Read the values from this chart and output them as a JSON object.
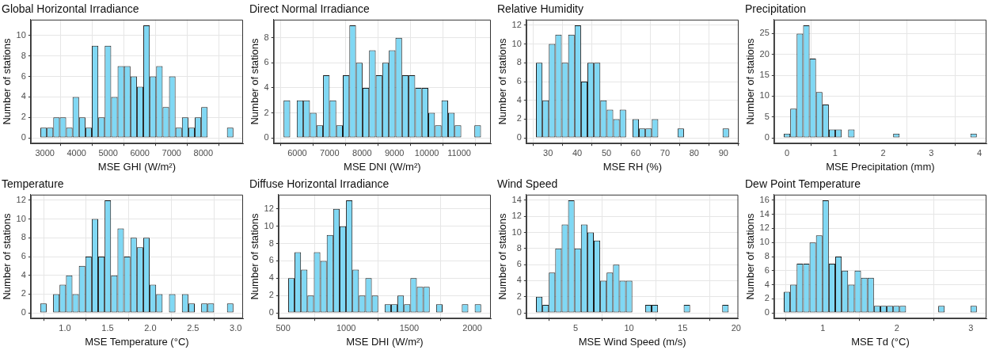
{
  "chart_data": [
    {
      "type": "histogram",
      "title": "Global Horizontal Irradiance",
      "xlabel": "MSE GHI (W/m²)",
      "ylabel": "Number of stations",
      "color": "#80d8f4",
      "grid": true,
      "bins": [
        2860,
        3063,
        3266,
        3469,
        3672,
        3875,
        4078,
        4281,
        4484,
        4687,
        4890,
        5093,
        5296,
        5499,
        5702,
        5905,
        6108,
        6311,
        6514,
        6717,
        6920,
        7123,
        7326,
        7529,
        7732,
        7935,
        8138,
        8341,
        8544,
        8747,
        8950
      ],
      "values": [
        1,
        1,
        2,
        2,
        1,
        4,
        2,
        1,
        9,
        2,
        9,
        4,
        7,
        7,
        6,
        5,
        11,
        6,
        7,
        3,
        6,
        1,
        2,
        1,
        2,
        3,
        0,
        0,
        0,
        1
      ],
      "xlim": [
        2555,
        9255
      ],
      "xticks": [
        3000,
        4000,
        5000,
        6000,
        7000,
        8000
      ],
      "ylim": [
        -0.55,
        11.55
      ],
      "yticks": [
        0,
        2,
        4,
        6,
        8,
        10
      ]
    },
    {
      "type": "histogram",
      "title": "Direct Normal Irradiance",
      "xlabel": "MSE DNI (W/m²)",
      "ylabel": "Number of stations",
      "color": "#80d8f4",
      "grid": true,
      "bins": [
        5580,
        5783,
        5986,
        6189,
        6392,
        6595,
        6798,
        7001,
        7204,
        7407,
        7610,
        7813,
        8016,
        8219,
        8422,
        8625,
        8828,
        9031,
        9234,
        9437,
        9640,
        9843,
        10046,
        10249,
        10452,
        10655,
        10858,
        11061,
        11264,
        11467,
        11670
      ],
      "values": [
        3,
        0,
        3,
        3,
        2,
        1,
        5,
        3,
        1,
        5,
        9,
        6,
        4,
        7,
        5,
        6,
        7,
        8,
        5,
        5,
        4,
        4,
        2,
        1,
        3,
        2,
        1,
        0,
        0,
        1
      ],
      "xlim": [
        5275,
        11975
      ],
      "xticks": [
        6000,
        7000,
        8000,
        9000,
        10000,
        11000
      ],
      "ylim": [
        -0.45,
        9.45
      ],
      "yticks": [
        0,
        2,
        4,
        6,
        8
      ]
    },
    {
      "type": "histogram",
      "title": "Relative Humidity",
      "xlabel": "MSE RH (%)",
      "ylabel": "Number of stations",
      "color": "#80d8f4",
      "grid": true,
      "bins": [
        25.9,
        28.1,
        30.3,
        32.5,
        34.7,
        36.9,
        39.1,
        41.3,
        43.5,
        45.7,
        47.9,
        50.1,
        52.3,
        54.5,
        56.7,
        58.9,
        61.1,
        63.3,
        65.5,
        67.7,
        69.9,
        72.1,
        74.3,
        76.5,
        78.7,
        80.9,
        83.1,
        85.3,
        87.5,
        89.7,
        91.9
      ],
      "values": [
        8,
        4,
        10,
        11,
        8,
        11,
        12,
        6,
        8,
        8,
        4,
        3,
        2,
        3,
        0,
        2,
        1,
        1,
        2,
        0,
        0,
        0,
        1,
        0,
        0,
        0,
        0,
        0,
        0,
        1
      ],
      "xlim": [
        22.6,
        95.2
      ],
      "xticks": [
        30,
        40,
        50,
        60,
        70,
        80,
        90
      ],
      "ylim": [
        -0.6,
        12.6
      ],
      "yticks": [
        0,
        2,
        4,
        6,
        8,
        10,
        12
      ]
    },
    {
      "type": "histogram",
      "title": "Precipitation",
      "xlabel": "MSE Precipitation (mm)",
      "ylabel": "Number of stations",
      "color": "#80d8f4",
      "grid": true,
      "bins": [
        -0.065,
        0.069,
        0.202,
        0.336,
        0.47,
        0.604,
        0.737,
        0.871,
        1.005,
        1.138,
        1.272,
        1.406,
        1.539,
        1.673,
        1.807,
        1.941,
        2.074,
        2.208,
        2.342,
        2.475,
        2.609,
        2.743,
        2.876,
        3.01,
        3.144,
        3.278,
        3.411,
        3.545,
        3.679,
        3.812,
        3.946
      ],
      "values": [
        1,
        7,
        25,
        27,
        19,
        11,
        8,
        2,
        2,
        0,
        2,
        0,
        0,
        0,
        0,
        0,
        0,
        1,
        0,
        0,
        0,
        0,
        0,
        0,
        0,
        0,
        0,
        0,
        0,
        1
      ],
      "xlim": [
        -0.266,
        4.147
      ],
      "xticks": [
        0,
        1,
        2,
        3,
        4
      ],
      "ylim": [
        -1.35,
        28.35
      ],
      "yticks": [
        0,
        5,
        10,
        15,
        20,
        25
      ]
    },
    {
      "type": "histogram",
      "title": "Temperature",
      "xlabel": "MSE Temperature (°C)",
      "ylabel": "Number of stations",
      "color": "#80d8f4",
      "grid": true,
      "bins": [
        0.711,
        0.786,
        0.862,
        0.937,
        1.013,
        1.088,
        1.163,
        1.239,
        1.314,
        1.39,
        1.465,
        1.54,
        1.616,
        1.691,
        1.767,
        1.842,
        1.917,
        1.993,
        2.068,
        2.144,
        2.219,
        2.294,
        2.37,
        2.445,
        2.521,
        2.596,
        2.671,
        2.747,
        2.822,
        2.898,
        2.973
      ],
      "values": [
        1,
        0,
        2,
        3,
        4,
        2,
        5,
        6,
        10,
        6,
        12,
        4,
        9,
        6,
        8,
        7,
        8,
        3,
        2,
        0,
        2,
        0,
        2,
        1,
        0,
        1,
        1,
        0,
        0,
        1
      ],
      "xlim": [
        0.6,
        3.086
      ],
      "xticks": [
        {
          "value": 1,
          "label": "1.0"
        },
        {
          "value": 1.5,
          "label": "1.5"
        },
        {
          "value": 2,
          "label": "2.0"
        },
        {
          "value": 2.5,
          "label": "2.5"
        },
        {
          "value": 3,
          "label": "3.0"
        }
      ],
      "ylim": [
        -0.6,
        12.6
      ],
      "yticks": [
        0,
        2,
        4,
        6,
        8,
        10,
        12
      ]
    },
    {
      "type": "histogram",
      "title": "Diffuse Horizontal Irradiance",
      "xlabel": "MSE DHI (W/m²)",
      "ylabel": "Number of stations",
      "color": "#80d8f4",
      "grid": true,
      "bins": [
        540,
        591,
        642,
        693,
        744,
        795,
        846,
        897,
        948,
        999,
        1050,
        1101,
        1152,
        1203,
        1254,
        1305,
        1356,
        1407,
        1458,
        1509,
        1560,
        1611,
        1662,
        1713,
        1764,
        1815,
        1866,
        1917,
        1968,
        2019,
        2070
      ],
      "values": [
        4,
        7,
        5,
        2,
        7,
        6,
        9,
        12,
        10,
        13,
        5,
        2,
        4,
        2,
        0,
        1,
        1,
        2,
        1,
        4,
        3,
        3,
        0,
        1,
        0,
        0,
        0,
        1,
        0,
        1
      ],
      "xlim": [
        464,
        2147
      ],
      "xticks": [
        500,
        1000,
        1500,
        2000
      ],
      "ylim": [
        -0.65,
        13.65
      ],
      "yticks": [
        0,
        2,
        4,
        6,
        8,
        10,
        12
      ]
    },
    {
      "type": "histogram",
      "title": "Wind Speed",
      "xlabel": "MSE Wind Speed (m/s)",
      "ylabel": "Number of stations",
      "color": "#80d8f4",
      "grid": true,
      "bins": [
        1.3,
        1.9,
        2.5,
        3.1,
        3.7,
        4.3,
        4.9,
        5.5,
        6.1,
        6.7,
        7.3,
        7.9,
        8.5,
        9.1,
        9.7,
        10.3,
        10.9,
        11.5,
        12.1,
        12.7,
        13.3,
        13.9,
        14.5,
        15.1,
        15.7,
        16.3,
        16.9,
        17.5,
        18.1,
        18.7,
        19.3
      ],
      "values": [
        2,
        1,
        5,
        8,
        11,
        14,
        8,
        11,
        10,
        9,
        4,
        5,
        6,
        4,
        4,
        0,
        0,
        1,
        1,
        0,
        0,
        0,
        0,
        1,
        0,
        0,
        0,
        0,
        0,
        1
      ],
      "xlim": [
        0.4,
        20.2
      ],
      "xticks": [
        5,
        10,
        15,
        20
      ],
      "ylim": [
        -0.7,
        14.7
      ],
      "yticks": [
        0,
        2,
        4,
        6,
        8,
        10,
        12,
        14
      ]
    },
    {
      "type": "histogram",
      "title": "Dew Point Temperature",
      "xlabel": "MSE Td (°C)",
      "ylabel": "Number of stations",
      "color": "#80d8f4",
      "grid": true,
      "bins": [
        0.474,
        0.561,
        0.648,
        0.735,
        0.822,
        0.909,
        0.995,
        1.082,
        1.169,
        1.256,
        1.343,
        1.43,
        1.517,
        1.604,
        1.691,
        1.778,
        1.865,
        1.951,
        2.038,
        2.125,
        2.212,
        2.299,
        2.386,
        2.473,
        2.56,
        2.647,
        2.734,
        2.821,
        2.907,
        2.994,
        3.081
      ],
      "values": [
        3,
        4,
        7,
        7,
        10,
        11,
        16,
        7,
        8,
        6,
        4,
        6,
        5,
        5,
        1,
        1,
        1,
        1,
        1,
        0,
        0,
        0,
        0,
        0,
        1,
        0,
        0,
        0,
        0,
        1
      ],
      "xlim": [
        0.344,
        3.211
      ],
      "xticks": [
        1,
        2,
        3
      ],
      "ylim": [
        -0.8,
        16.8
      ],
      "yticks": [
        0,
        2,
        4,
        6,
        8,
        10,
        12,
        14,
        16
      ]
    }
  ]
}
